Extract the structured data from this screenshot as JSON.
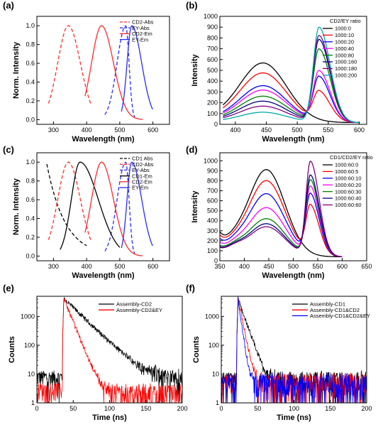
{
  "figure": {
    "panels": [
      "(a)",
      "(b)",
      "(c)",
      "(d)",
      "(e)",
      "(f)"
    ]
  },
  "chart_data": [
    {
      "id": "a",
      "label": "(a)",
      "type": "line",
      "xlabel": "Wavelength (nm)",
      "ylabel": "Norm. Intensity",
      "xlim": [
        250,
        650
      ],
      "ylim": [
        -0.05,
        1.1
      ],
      "xticks": [
        300,
        400,
        500,
        600
      ],
      "yticks": [
        0.0,
        0.2,
        0.4,
        0.6,
        0.8,
        1.0
      ],
      "legend_position": "top-right",
      "series": [
        {
          "name": "CD2-Abs",
          "color": "#ff2a2a",
          "dash": true,
          "peak": {
            "type": "gauss",
            "center": 345,
            "wl": 32,
            "wr": 36
          },
          "x_start": 285,
          "x_end": 415,
          "base": 0.14
        },
        {
          "name": "EY-Abs",
          "color": "#2a2aff",
          "dash": true,
          "peak": {
            "type": "gauss",
            "center": 518,
            "wl": 26,
            "wr": 10
          },
          "x_start": 455,
          "x_end": 545,
          "base": 0.0
        },
        {
          "name": "CD2-Em",
          "color": "#ff2a2a",
          "dash": false,
          "peak": {
            "type": "gauss",
            "center": 445,
            "wl": 30,
            "wr": 36
          },
          "x_start": 395,
          "x_end": 570,
          "base": 0.0
        },
        {
          "name": "EY-Em",
          "color": "#2a2aff",
          "dash": false,
          "peak": {
            "type": "gauss",
            "center": 536,
            "wl": 14,
            "wr": 30
          },
          "x_start": 505,
          "x_end": 600,
          "base": 0.0
        }
      ]
    },
    {
      "id": "b",
      "label": "(b)",
      "type": "line",
      "xlabel": "Wavelength (nm)",
      "ylabel": "Intensity",
      "xlim": [
        375,
        612
      ],
      "ylim": [
        0,
        1000
      ],
      "xticks": [
        400,
        450,
        500,
        550,
        600
      ],
      "yticks": [
        0,
        100,
        200,
        300,
        400,
        500,
        600,
        700,
        800,
        900,
        1000
      ],
      "legend_title": "CD2/EY ratio",
      "legend_position": "top-right",
      "x_start": 380,
      "x_end": 600,
      "series": [
        {
          "name": "1000:0",
          "color": "#000000",
          "cd": 540,
          "ey": 0
        },
        {
          "name": "1000:10",
          "color": "#ff0000",
          "cd": 450,
          "ey": 270
        },
        {
          "name": "1000:20",
          "color": "#0000ff",
          "cd": 335,
          "ey": 410
        },
        {
          "name": "1000:40",
          "color": "#ff00ff",
          "cd": 295,
          "ey": 465
        },
        {
          "name": "1000:80",
          "color": "#008000",
          "cd": 240,
          "ey": 670
        },
        {
          "name": "1000:160",
          "color": "#000080",
          "cd": 195,
          "ey": 760
        },
        {
          "name": "1000:180",
          "color": "#800080",
          "cd": 150,
          "ey": 800
        },
        {
          "name": "1000:200",
          "color": "#00aaaa",
          "cd": 95,
          "ey": 880
        }
      ]
    },
    {
      "id": "c",
      "label": "(c)",
      "type": "line",
      "xlabel": "Wavelength (nm)",
      "ylabel": "Norm. Intensity",
      "xlim": [
        250,
        650
      ],
      "ylim": [
        -0.05,
        1.1
      ],
      "xticks": [
        300,
        400,
        500,
        600
      ],
      "yticks": [
        0.0,
        0.2,
        0.4,
        0.6,
        0.8,
        1.0
      ],
      "legend_position": "top-right",
      "series": [
        {
          "name": "CD1 Abs",
          "color": "#000000",
          "dash": true,
          "peak": {
            "type": "decay",
            "x0": 280,
            "k": 55
          },
          "x_start": 280,
          "x_end": 400,
          "base": 0.0
        },
        {
          "name": "CD2-Abs",
          "color": "#ff2a2a",
          "dash": true,
          "peak": {
            "type": "gauss",
            "center": 345,
            "wl": 32,
            "wr": 36
          },
          "x_start": 285,
          "x_end": 415,
          "base": 0.14
        },
        {
          "name": "EY-Abs",
          "color": "#2a2aff",
          "dash": true,
          "peak": {
            "type": "gauss",
            "center": 518,
            "wl": 26,
            "wr": 10
          },
          "x_start": 455,
          "x_end": 545,
          "base": 0.0
        },
        {
          "name": "CD1-Em",
          "color": "#000000",
          "dash": false,
          "peak": {
            "type": "gauss",
            "center": 380,
            "wl": 26,
            "wr": 55
          },
          "x_start": 320,
          "x_end": 500,
          "base": 0.0
        },
        {
          "name": "CD2-Em",
          "color": "#ff2a2a",
          "dash": false,
          "peak": {
            "type": "gauss",
            "center": 445,
            "wl": 30,
            "wr": 36
          },
          "x_start": 395,
          "x_end": 570,
          "base": 0.0
        },
        {
          "name": "EY-Em",
          "color": "#2a2aff",
          "dash": false,
          "peak": {
            "type": "gauss",
            "center": 536,
            "wl": 14,
            "wr": 30
          },
          "x_start": 505,
          "x_end": 600,
          "base": 0.0
        }
      ]
    },
    {
      "id": "d",
      "label": "(d)",
      "type": "line",
      "xlabel": "Wavelength (nm)",
      "ylabel": "Intensity",
      "xlim": [
        350,
        650
      ],
      "ylim": [
        0,
        1080
      ],
      "xticks": [
        350,
        400,
        450,
        500,
        550,
        600,
        650
      ],
      "yticks": [
        0,
        100,
        200,
        300,
        400,
        500,
        600,
        700,
        800,
        900,
        1000
      ],
      "legend_title": "CD1/CD2/EY ratio",
      "legend_position": "top-right",
      "x_start": 350,
      "x_end": 600,
      "series": [
        {
          "name": "1000:60:0",
          "color": "#000000",
          "cd": 870,
          "ey": 0
        },
        {
          "name": "1000:60:5",
          "color": "#ff0000",
          "cd": 760,
          "ey": 480
        },
        {
          "name": "1000:60:10",
          "color": "#0000ff",
          "cd": 630,
          "ey": 600
        },
        {
          "name": "1000:60:20",
          "color": "#ff00ff",
          "cd": 490,
          "ey": 680
        },
        {
          "name": "1000:60:30",
          "color": "#008000",
          "cd": 380,
          "ey": 750
        },
        {
          "name": "1000:60:40",
          "color": "#000080",
          "cd": 330,
          "ey": 800
        },
        {
          "name": "1000:60:60",
          "color": "#800080",
          "cd": 300,
          "ey": 940
        }
      ]
    },
    {
      "id": "e",
      "label": "(e)",
      "type": "line",
      "scale_y": "log",
      "xlabel": "Time (ns)",
      "ylabel": "Counts",
      "xlim": [
        0,
        200
      ],
      "ylim": [
        1,
        5000
      ],
      "xticks": [
        0,
        50,
        100,
        150,
        200
      ],
      "yticks": [
        1,
        10,
        100,
        1000
      ],
      "legend_position": "top-right",
      "t0": 37,
      "series": [
        {
          "name": "Assembly-CD2",
          "color": "#000000",
          "tau": 18,
          "noise": 8,
          "pre": 8
        },
        {
          "name": "Assembly-CD2&EY",
          "color": "#ff0000",
          "tau": 7,
          "noise": 2.5,
          "pre": 3
        }
      ]
    },
    {
      "id": "f",
      "label": "(f)",
      "type": "line",
      "scale_y": "log",
      "xlabel": "Time (ns)",
      "ylabel": "Counts",
      "xlim": [
        0,
        200
      ],
      "ylim": [
        1,
        5000
      ],
      "xticks": [
        0,
        50,
        100,
        150,
        200
      ],
      "yticks": [
        1,
        10,
        100,
        1000
      ],
      "legend_position": "top-right",
      "t0": 23,
      "series": [
        {
          "name": "Assembly-CD1",
          "color": "#000000",
          "tau": 6,
          "noise": 7,
          "pre": 7
        },
        {
          "name": "Assembly-CD1&CD2",
          "color": "#ff0000",
          "tau": 3.5,
          "noise": 6,
          "pre": 6
        },
        {
          "name": "Assembly-CD1&CD2&EY",
          "color": "#0000ff",
          "tau": 2.5,
          "noise": 6,
          "pre": 6
        }
      ]
    }
  ]
}
